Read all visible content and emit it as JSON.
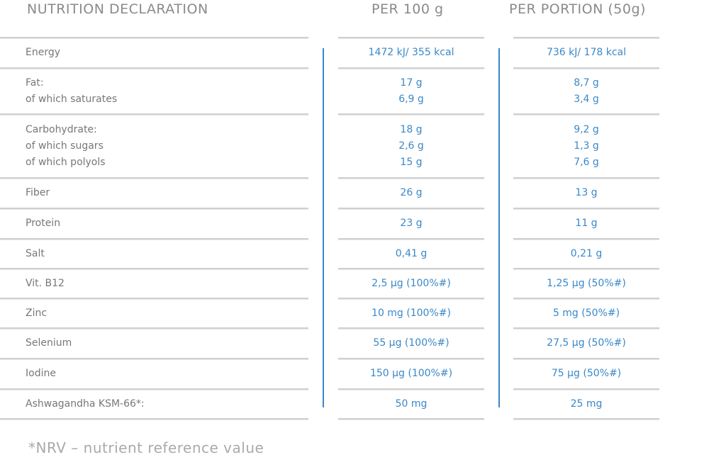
{
  "header": {
    "title": "NUTRITION DECLARATION",
    "per100": "PER 100 g",
    "portion": "PER PORTION (50g)"
  },
  "table": {
    "rows": [
      {
        "label": [
          "Energy"
        ],
        "per100": [
          "1472 kJ/ 355 kcal"
        ],
        "portion": [
          "736 kJ/ 178 kcal"
        ]
      },
      {
        "label": [
          "Fat:",
          "of which saturates"
        ],
        "per100": [
          "17 g",
          "6,9 g"
        ],
        "portion": [
          "8,7 g",
          "3,4 g"
        ]
      },
      {
        "label": [
          "Carbohydrate:",
          "of which sugars",
          "of which polyols"
        ],
        "per100": [
          "18 g",
          "2,6 g",
          "15 g"
        ],
        "portion": [
          "9,2 g",
          "1,3 g",
          "7,6 g"
        ]
      },
      {
        "label": [
          "Fiber"
        ],
        "per100": [
          "26 g"
        ],
        "portion": [
          "13 g"
        ]
      },
      {
        "label": [
          "Protein"
        ],
        "per100": [
          "23 g"
        ],
        "portion": [
          "11 g"
        ]
      },
      {
        "label": [
          "Salt"
        ],
        "per100": [
          "0,41 g"
        ],
        "portion": [
          "0,21 g"
        ]
      },
      {
        "label": [
          "Vit. B12"
        ],
        "per100": [
          "2,5 µg (100%#)"
        ],
        "portion": [
          "1,25 µg (50%#)"
        ]
      },
      {
        "label": [
          "Zinc"
        ],
        "per100": [
          "10 mg (100%#)"
        ],
        "portion": [
          "5 mg (50%#)"
        ]
      },
      {
        "label": [
          "Selenium"
        ],
        "per100": [
          "55 µg (100%#)"
        ],
        "portion": [
          "27,5 µg (50%#)"
        ]
      },
      {
        "label": [
          "Iodine"
        ],
        "per100": [
          "150 µg (100%#)"
        ],
        "portion": [
          "75 µg (50%#)"
        ]
      },
      {
        "label": [
          "Ashwagandha KSM-66*:"
        ],
        "per100": [
          "50 mg"
        ],
        "portion": [
          "25 mg"
        ]
      }
    ]
  },
  "footnote": "*NRV – nutrient reference value"
}
